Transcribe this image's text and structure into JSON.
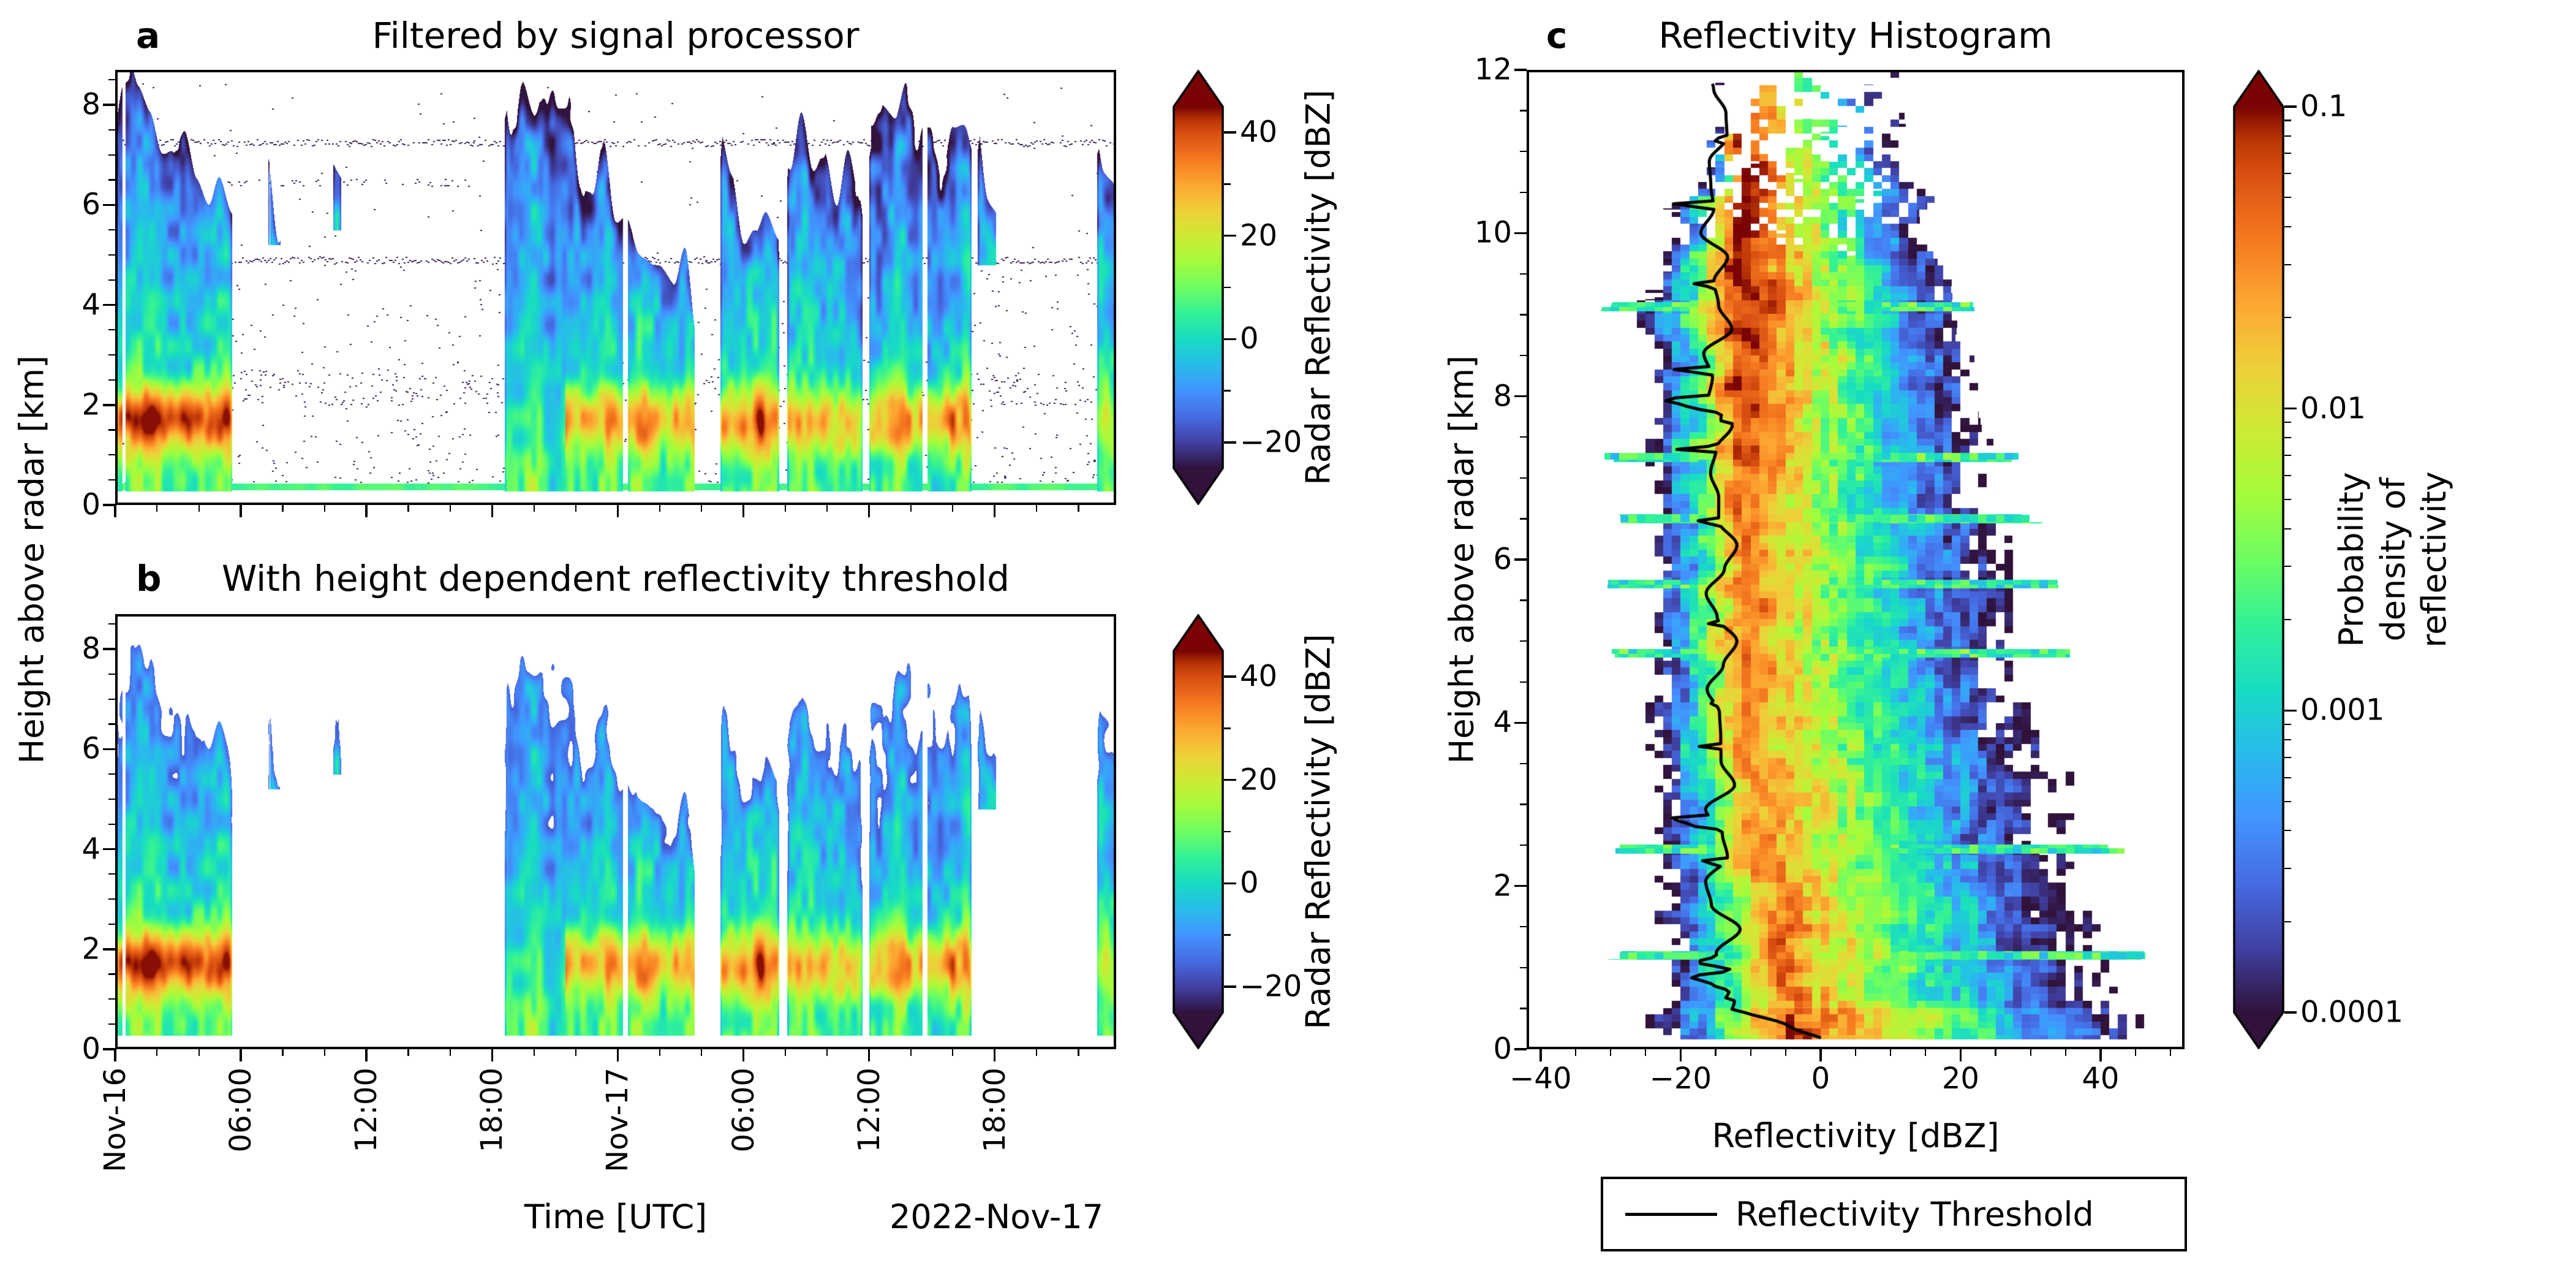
{
  "figure": {
    "background": "#ffffff",
    "panel_tags": {
      "a": "a",
      "b": "b",
      "c": "c"
    },
    "date_note": "2022-Nov-17",
    "colormap": {
      "name": "turbo-like",
      "stops": [
        [
          0.0,
          "#30123b"
        ],
        [
          0.071,
          "#4040a2"
        ],
        [
          0.143,
          "#466be3"
        ],
        [
          0.214,
          "#4294ff"
        ],
        [
          0.286,
          "#28bbec"
        ],
        [
          0.357,
          "#18dcc3"
        ],
        [
          0.429,
          "#32f197"
        ],
        [
          0.5,
          "#6dfd62"
        ],
        [
          0.571,
          "#a4fc3c"
        ],
        [
          0.643,
          "#cdeb34"
        ],
        [
          0.714,
          "#eecf3a"
        ],
        [
          0.786,
          "#fda631"
        ],
        [
          0.857,
          "#f57820"
        ],
        [
          0.929,
          "#d94e11"
        ],
        [
          0.964,
          "#b93505"
        ],
        [
          1.0,
          "#7a0403"
        ]
      ]
    }
  },
  "chart_data": [
    {
      "panel": "a",
      "type": "heatmap",
      "title": "Filtered by signal processor",
      "x": {
        "label": "Time [UTC]",
        "range_hours": [
          0,
          47.8
        ],
        "start_date": "Nov-16",
        "tick_hours": [
          0,
          6,
          12,
          18,
          24,
          30,
          36,
          42
        ],
        "tick_labels": [
          "Nov-16",
          "06:00",
          "12:00",
          "18:00",
          "Nov-17",
          "06:00",
          "12:00",
          "18:00"
        ],
        "minor_step_hours": 2
      },
      "y": {
        "label": "Height above radar [km]",
        "range_km": [
          0,
          8.7
        ],
        "ticks": [
          0,
          2,
          4,
          6,
          8
        ],
        "minor_step_km": 0.5
      },
      "color": {
        "label": "Radar Reflectivity [dBZ]",
        "range_dbz": [
          -25,
          45
        ],
        "ticks": [
          {
            "v": 40,
            "label": "40"
          },
          {
            "v": 20,
            "label": "20"
          },
          {
            "v": 0,
            "label": "0"
          },
          {
            "v": -20,
            "label": "−20"
          }
        ],
        "minor_ticks": [
          30,
          10,
          -10
        ]
      },
      "event_fields": [
        "t_start_h",
        "t_end_h",
        "top_start_km",
        "top_end_km",
        "base_km",
        "low_band_dbz",
        "band_start_h"
      ],
      "events": [
        [
          0,
          5.6,
          8.4,
          6.0,
          0.28,
          34,
          0
        ],
        [
          7.3,
          7.9,
          6.6,
          6.1,
          5.2,
          0,
          0
        ],
        [
          10.4,
          10.8,
          6.4,
          6.1,
          5.5,
          0,
          0
        ],
        [
          18.6,
          27.8,
          8.6,
          4.2,
          0.28,
          27,
          21.5
        ],
        [
          28.9,
          31.7,
          6.9,
          5.4,
          0.28,
          31,
          0
        ],
        [
          32.1,
          35.7,
          7.2,
          6.3,
          0.28,
          28,
          0
        ],
        [
          36.0,
          40.9,
          8.4,
          7.0,
          0.28,
          30,
          0
        ],
        [
          41.2,
          42.4,
          7.0,
          5.9,
          4.8,
          0,
          0
        ],
        [
          46.9,
          47.8,
          7.0,
          6.5,
          0.28,
          18,
          0
        ]
      ],
      "clutter_lines_km": [
        7.25,
        4.9,
        6.45
      ],
      "clutter_band_km": [
        2.0,
        2.65
      ],
      "surface_line": {
        "height_km": 0.35,
        "dbz": 7
      }
    },
    {
      "panel": "b",
      "type": "heatmap",
      "title": "With height dependent reflectivity threshold",
      "threshold_applied": true,
      "events": "same_as_panel_a",
      "x": "same_as_panel_a",
      "y": "same_as_panel_a",
      "color": {
        "label": "Radar Reflectivity [dBZ]",
        "range_dbz": [
          -25,
          45
        ],
        "ticks": [
          {
            "v": 40,
            "label": "40"
          },
          {
            "v": 20,
            "label": "20"
          },
          {
            "v": 0,
            "label": "0"
          },
          {
            "v": -20,
            "label": "−20"
          }
        ],
        "minor_ticks": [
          30,
          10,
          -10
        ]
      }
    },
    {
      "panel": "c",
      "type": "heatmap",
      "title": "Reflectivity Histogram",
      "x": {
        "label": "Reflectivity [dBZ]",
        "range_dbz": [
          -42,
          52
        ],
        "ticks": [
          {
            "v": -40,
            "label": "−40"
          },
          {
            "v": -20,
            "label": "−20"
          },
          {
            "v": 0,
            "label": "0"
          },
          {
            "v": 20,
            "label": "20"
          },
          {
            "v": 40,
            "label": "40"
          }
        ],
        "minor_step_dbz": 5
      },
      "y": {
        "label": "Height above radar [km]",
        "range_km": [
          0,
          12
        ],
        "ticks": [
          0,
          2,
          4,
          6,
          8,
          10,
          12
        ],
        "minor_step_km": 0.5
      },
      "color": {
        "label": "Probability density of\nreflectivity",
        "scale": "log",
        "range": [
          0.0001,
          0.1
        ],
        "ticks": [
          {
            "v": 0.1,
            "label": "0.1"
          },
          {
            "v": 0.01,
            "label": "0.01"
          },
          {
            "v": 0.001,
            "label": "0.001"
          },
          {
            "v": 0.0001,
            "label": "0.0001"
          }
        ]
      },
      "model": {
        "left_edge_dbz": -28,
        "right_edge_surface_dbz": 47,
        "right_edge_slope_dbz_per_km": 3.1,
        "mode_dbz_aloft": -12,
        "peak_density": 0.1,
        "streak_heights_km": [
          1.15,
          2.45,
          4.85,
          5.7,
          6.5,
          7.25,
          9.1
        ]
      },
      "threshold_line": {
        "label": "Reflectivity Threshold",
        "base_dbz": -15,
        "jitter_dbz": 5,
        "surface_bend": {
          "below_km": 0.5,
          "to_dbz": 6
        }
      }
    }
  ]
}
